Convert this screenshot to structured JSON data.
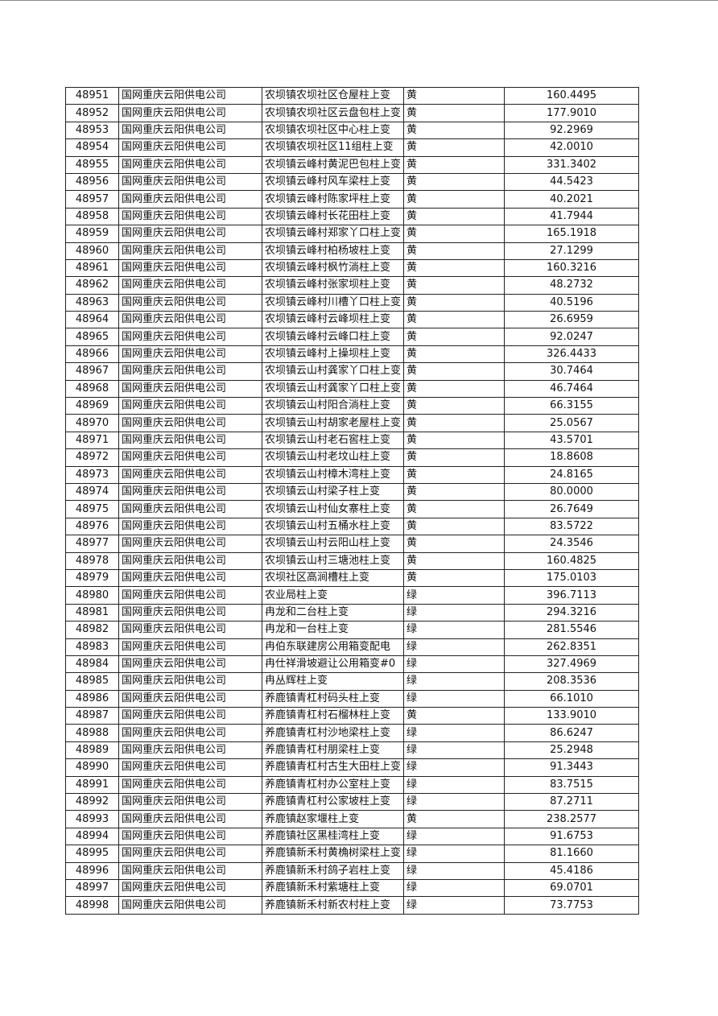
{
  "rows": [
    [
      "48951",
      "国网重庆云阳供电公司",
      "农坝镇农坝社区仓屋柱上变",
      "黄",
      "160.4495"
    ],
    [
      "48952",
      "国网重庆云阳供电公司",
      "农坝镇农坝社区云盘包柱上变",
      "黄",
      "177.9010"
    ],
    [
      "48953",
      "国网重庆云阳供电公司",
      "农坝镇农坝社区中心柱上变",
      "黄",
      "92.2969"
    ],
    [
      "48954",
      "国网重庆云阳供电公司",
      "农坝镇农坝社区11组柱上变",
      "黄",
      "42.0010"
    ],
    [
      "48955",
      "国网重庆云阳供电公司",
      "农坝镇云峰村黄泥巴包柱上变",
      "黄",
      "331.3402"
    ],
    [
      "48956",
      "国网重庆云阳供电公司",
      "农坝镇云峰村风车梁柱上变",
      "黄",
      "44.5423"
    ],
    [
      "48957",
      "国网重庆云阳供电公司",
      "农坝镇云峰村陈家坪柱上变",
      "黄",
      "40.2021"
    ],
    [
      "48958",
      "国网重庆云阳供电公司",
      "农坝镇云峰村长花田柱上变",
      "黄",
      "41.7944"
    ],
    [
      "48959",
      "国网重庆云阳供电公司",
      "农坝镇云峰村郑家丫口柱上变",
      "黄",
      "165.1918"
    ],
    [
      "48960",
      "国网重庆云阳供电公司",
      "农坝镇云峰村柏杨坡柱上变",
      "黄",
      "27.1299"
    ],
    [
      "48961",
      "国网重庆云阳供电公司",
      "农坝镇云峰村枫竹淌柱上变",
      "黄",
      "160.3216"
    ],
    [
      "48962",
      "国网重庆云阳供电公司",
      "农坝镇云峰村张家坝柱上变",
      "黄",
      "48.2732"
    ],
    [
      "48963",
      "国网重庆云阳供电公司",
      "农坝镇云峰村川槽丫口柱上变",
      "黄",
      "40.5196"
    ],
    [
      "48964",
      "国网重庆云阳供电公司",
      "农坝镇云峰村云峰坝柱上变",
      "黄",
      "26.6959"
    ],
    [
      "48965",
      "国网重庆云阳供电公司",
      "农坝镇云峰村云峰口柱上变",
      "黄",
      "92.0247"
    ],
    [
      "48966",
      "国网重庆云阳供电公司",
      "农坝镇云峰村上操坝柱上变",
      "黄",
      "326.4433"
    ],
    [
      "48967",
      "国网重庆云阳供电公司",
      "农坝镇云山村龚家丫口柱上变",
      "黄",
      "30.7464"
    ],
    [
      "48968",
      "国网重庆云阳供电公司",
      "农坝镇云山村龚家丫口柱上变",
      "黄",
      "46.7464"
    ],
    [
      "48969",
      "国网重庆云阳供电公司",
      "农坝镇云山村阳合淌柱上变",
      "黄",
      "66.3155"
    ],
    [
      "48970",
      "国网重庆云阳供电公司",
      "农坝镇云山村胡家老屋柱上变",
      "黄",
      "25.0567"
    ],
    [
      "48971",
      "国网重庆云阳供电公司",
      "农坝镇云山村老石窖柱上变",
      "黄",
      "43.5701"
    ],
    [
      "48972",
      "国网重庆云阳供电公司",
      "农坝镇云山村老坟山柱上变",
      "黄",
      "18.8608"
    ],
    [
      "48973",
      "国网重庆云阳供电公司",
      "农坝镇云山村樟木湾柱上变",
      "黄",
      "24.8165"
    ],
    [
      "48974",
      "国网重庆云阳供电公司",
      "农坝镇云山村梁子柱上变",
      "黄",
      "80.0000"
    ],
    [
      "48975",
      "国网重庆云阳供电公司",
      "农坝镇云山村仙女寨柱上变",
      "黄",
      "26.7649"
    ],
    [
      "48976",
      "国网重庆云阳供电公司",
      "农坝镇云山村五桶水柱上变",
      "黄",
      "83.5722"
    ],
    [
      "48977",
      "国网重庆云阳供电公司",
      "农坝镇云山村云阳山柱上变",
      "黄",
      "24.3546"
    ],
    [
      "48978",
      "国网重庆云阳供电公司",
      "农坝镇云山村三塘池柱上变",
      "黄",
      "160.4825"
    ],
    [
      "48979",
      "国网重庆云阳供电公司",
      "农坝社区高涧槽柱上变",
      "黄",
      "175.0103"
    ],
    [
      "48980",
      "国网重庆云阳供电公司",
      "农业局柱上变",
      "绿",
      "396.7113"
    ],
    [
      "48981",
      "国网重庆云阳供电公司",
      "冉龙和二台柱上变",
      "绿",
      "294.3216"
    ],
    [
      "48982",
      "国网重庆云阳供电公司",
      "冉龙和一台柱上变",
      "绿",
      "281.5546"
    ],
    [
      "48983",
      "国网重庆云阳供电公司",
      "冉伯东联建房公用箱变配电",
      "绿",
      "262.8351"
    ],
    [
      "48984",
      "国网重庆云阳供电公司",
      "冉仕祥滑坡避让公用箱变#0",
      "绿",
      "327.4969"
    ],
    [
      "48985",
      "国网重庆云阳供电公司",
      "冉丛辉柱上变",
      "绿",
      "208.3536"
    ],
    [
      "48986",
      "国网重庆云阳供电公司",
      "养鹿镇青杠村码头柱上变",
      "绿",
      "66.1010"
    ],
    [
      "48987",
      "国网重庆云阳供电公司",
      "养鹿镇青杠村石榴林柱上变",
      "黄",
      "133.9010"
    ],
    [
      "48988",
      "国网重庆云阳供电公司",
      "养鹿镇青杠村沙地梁柱上变",
      "绿",
      "86.6247"
    ],
    [
      "48989",
      "国网重庆云阳供电公司",
      "养鹿镇青杠村朋梁柱上变",
      "绿",
      "25.2948"
    ],
    [
      "48990",
      "国网重庆云阳供电公司",
      "养鹿镇青杠村古生大田柱上变",
      "绿",
      "91.3443"
    ],
    [
      "48991",
      "国网重庆云阳供电公司",
      "养鹿镇青杠村办公室柱上变",
      "绿",
      "83.7515"
    ],
    [
      "48992",
      "国网重庆云阳供电公司",
      "养鹿镇青杠村公家坡柱上变",
      "绿",
      "87.2711"
    ],
    [
      "48993",
      "国网重庆云阳供电公司",
      "养鹿镇赵家堰柱上变",
      "黄",
      "238.2577"
    ],
    [
      "48994",
      "国网重庆云阳供电公司",
      "养鹿镇社区黑桂湾柱上变",
      "绿",
      "91.6753"
    ],
    [
      "48995",
      "国网重庆云阳供电公司",
      "养鹿镇新禾村黄桷树梁柱上变",
      "绿",
      "81.1660"
    ],
    [
      "48996",
      "国网重庆云阳供电公司",
      "养鹿镇新禾村鸽子岩柱上变",
      "绿",
      "45.4186"
    ],
    [
      "48997",
      "国网重庆云阳供电公司",
      "养鹿镇新禾村紫塘柱上变",
      "绿",
      "69.0701"
    ],
    [
      "48998",
      "国网重庆云阳供电公司",
      "养鹿镇新禾村新农村柱上变",
      "绿",
      "73.7753"
    ]
  ]
}
